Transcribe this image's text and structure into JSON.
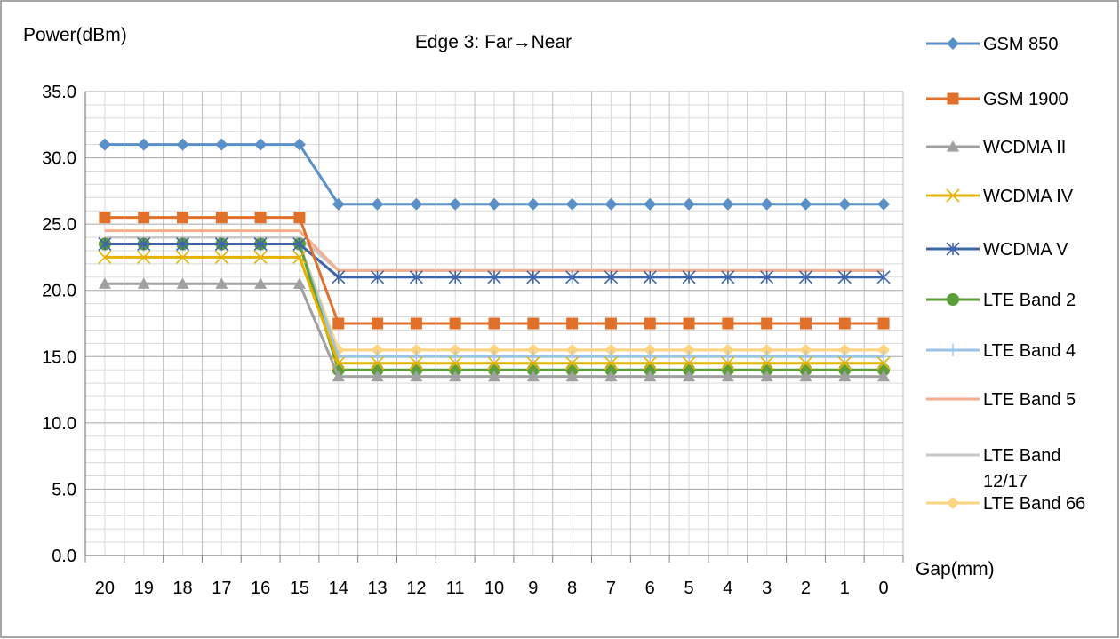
{
  "chart_data": {
    "type": "line",
    "title": "Edge 3: Far→Near",
    "xlabel": "Gap(mm)",
    "ylabel": "Power(dBm)",
    "ylim": [
      0,
      35
    ],
    "y_ticks": [
      "0.0",
      "5.0",
      "10.0",
      "15.0",
      "20.0",
      "25.0",
      "30.0",
      "35.0"
    ],
    "grid": true,
    "legend_position": "right",
    "categories": [
      "20",
      "19",
      "18",
      "17",
      "16",
      "15",
      "14",
      "13",
      "12",
      "11",
      "10",
      "9",
      "8",
      "7",
      "6",
      "5",
      "4",
      "3",
      "2",
      "1",
      "0"
    ],
    "series": [
      {
        "name": "GSM 850",
        "color": "#5B8FC7",
        "marker": "diamond",
        "values": [
          31.0,
          31.0,
          31.0,
          31.0,
          31.0,
          31.0,
          26.5,
          26.5,
          26.5,
          26.5,
          26.5,
          26.5,
          26.5,
          26.5,
          26.5,
          26.5,
          26.5,
          26.5,
          26.5,
          26.5,
          26.5
        ]
      },
      {
        "name": "GSM 1900",
        "color": "#E0702A",
        "marker": "square",
        "values": [
          25.5,
          25.5,
          25.5,
          25.5,
          25.5,
          25.5,
          17.5,
          17.5,
          17.5,
          17.5,
          17.5,
          17.5,
          17.5,
          17.5,
          17.5,
          17.5,
          17.5,
          17.5,
          17.5,
          17.5,
          17.5
        ]
      },
      {
        "name": "WCDMA II",
        "color": "#A0A0A0",
        "marker": "triangle",
        "values": [
          20.5,
          20.5,
          20.5,
          20.5,
          20.5,
          20.5,
          13.5,
          13.5,
          13.5,
          13.5,
          13.5,
          13.5,
          13.5,
          13.5,
          13.5,
          13.5,
          13.5,
          13.5,
          13.5,
          13.5,
          13.5
        ]
      },
      {
        "name": "WCDMA IV",
        "color": "#E6B200",
        "marker": "x",
        "values": [
          22.5,
          22.5,
          22.5,
          22.5,
          22.5,
          22.5,
          14.5,
          14.5,
          14.5,
          14.5,
          14.5,
          14.5,
          14.5,
          14.5,
          14.5,
          14.5,
          14.5,
          14.5,
          14.5,
          14.5,
          14.5
        ]
      },
      {
        "name": "WCDMA V",
        "color": "#3E64AA",
        "marker": "star",
        "values": [
          23.5,
          23.5,
          23.5,
          23.5,
          23.5,
          23.5,
          21.0,
          21.0,
          21.0,
          21.0,
          21.0,
          21.0,
          21.0,
          21.0,
          21.0,
          21.0,
          21.0,
          21.0,
          21.0,
          21.0,
          21.0
        ]
      },
      {
        "name": "LTE Band 2",
        "color": "#5E9E3A",
        "marker": "circle",
        "values": [
          23.5,
          23.5,
          23.5,
          23.5,
          23.5,
          23.5,
          14.0,
          14.0,
          14.0,
          14.0,
          14.0,
          14.0,
          14.0,
          14.0,
          14.0,
          14.0,
          14.0,
          14.0,
          14.0,
          14.0,
          14.0
        ]
      },
      {
        "name": "LTE Band 4",
        "color": "#9DC3E6",
        "marker": "plus",
        "values": [
          23.5,
          23.5,
          23.5,
          23.5,
          23.5,
          23.5,
          15.0,
          15.0,
          15.0,
          15.0,
          15.0,
          15.0,
          15.0,
          15.0,
          15.0,
          15.0,
          15.0,
          15.0,
          15.0,
          15.0,
          15.0
        ]
      },
      {
        "name": "LTE Band 5",
        "color": "#F4AE8F",
        "marker": "none",
        "values": [
          24.5,
          24.5,
          24.5,
          24.5,
          24.5,
          24.5,
          21.5,
          21.5,
          21.5,
          21.5,
          21.5,
          21.5,
          21.5,
          21.5,
          21.5,
          21.5,
          21.5,
          21.5,
          21.5,
          21.5,
          21.5
        ]
      },
      {
        "name": "LTE Band 12/17",
        "color": "#C8C8C8",
        "marker": "none",
        "values": [
          24.0,
          24.0,
          24.0,
          24.0,
          24.0,
          24.0,
          21.5,
          21.5,
          21.5,
          21.5,
          21.5,
          21.5,
          21.5,
          21.5,
          21.5,
          21.5,
          21.5,
          21.5,
          21.5,
          21.5,
          21.5
        ]
      },
      {
        "name": "LTE Band 66",
        "color": "#FFD480",
        "marker": "diamond",
        "values": [
          23.5,
          23.5,
          23.5,
          23.5,
          23.5,
          23.5,
          15.5,
          15.5,
          15.5,
          15.5,
          15.5,
          15.5,
          15.5,
          15.5,
          15.5,
          15.5,
          15.5,
          15.5,
          15.5,
          15.5,
          15.5
        ]
      }
    ]
  }
}
